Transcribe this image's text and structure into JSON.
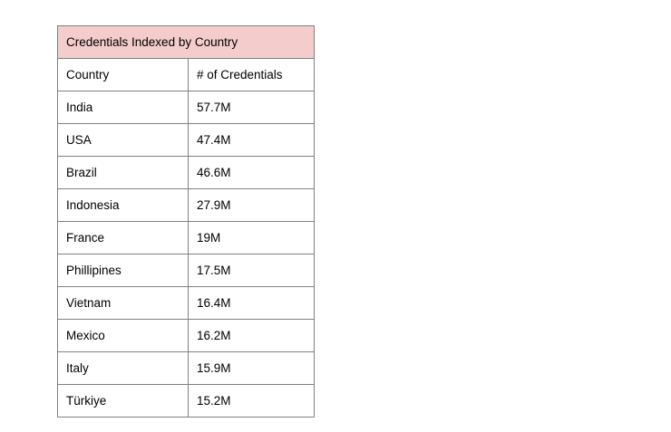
{
  "table": {
    "title": "Credentials Indexed by Country",
    "columns": {
      "country": "Country",
      "credentials": "# of Credentials"
    },
    "rows": [
      {
        "country": "India",
        "value": "57.7M"
      },
      {
        "country": "USA",
        "value": "47.4M"
      },
      {
        "country": "Brazil",
        "value": "46.6M"
      },
      {
        "country": "Indonesia",
        "value": "27.9M"
      },
      {
        "country": "France",
        "value": "19M"
      },
      {
        "country": "Phillipines",
        "value": "17.5M"
      },
      {
        "country": "Vietnam",
        "value": "16.4M"
      },
      {
        "country": "Mexico",
        "value": "16.2M"
      },
      {
        "country": "Italy",
        "value": "15.9M"
      },
      {
        "country": "Türkiye",
        "value": "15.2M"
      }
    ],
    "colors": {
      "title_background": "#f4cccc",
      "border": "#818181",
      "text": "#000000",
      "cell_background": "#ffffff"
    }
  },
  "chart_data": {
    "type": "table",
    "title": "Credentials Indexed by Country",
    "columns": [
      "Country",
      "# of Credentials"
    ],
    "categories": [
      "India",
      "USA",
      "Brazil",
      "Indonesia",
      "France",
      "Phillipines",
      "Vietnam",
      "Mexico",
      "Italy",
      "Türkiye"
    ],
    "values": [
      57.7,
      47.4,
      46.6,
      27.9,
      19,
      17.5,
      16.4,
      16.2,
      15.9,
      15.2
    ],
    "value_unit": "M",
    "value_labels": [
      "57.7M",
      "47.4M",
      "46.6M",
      "27.9M",
      "19M",
      "17.5M",
      "16.4M",
      "16.2M",
      "15.9M",
      "15.2M"
    ]
  }
}
